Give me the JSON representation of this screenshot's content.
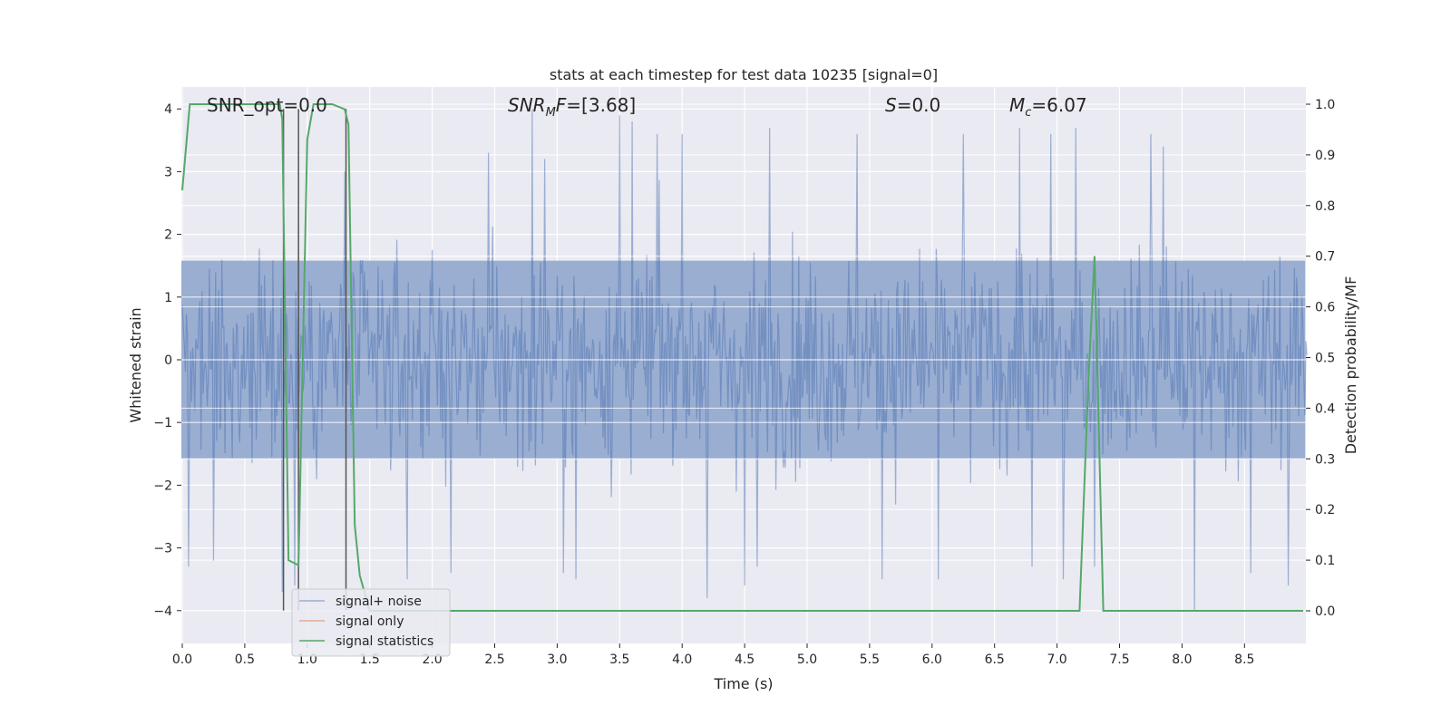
{
  "chart_data": {
    "type": "line",
    "title": "stats at each timestep for test data 10235 [signal=0]",
    "xlabel": "Time (s)",
    "ylabel": "Whitened strain",
    "ylabel_right": "Detection probability/MF",
    "xlim": [
      0.0,
      9.0
    ],
    "ylim": [
      -4.4,
      4.4
    ],
    "ylim_right": [
      -0.05,
      1.05
    ],
    "x_ticks": [
      "0.0",
      "0.5",
      "1.0",
      "1.5",
      "2.0",
      "2.5",
      "3.0",
      "3.5",
      "4.0",
      "4.5",
      "5.0",
      "5.5",
      "6.0",
      "6.5",
      "7.0",
      "7.5",
      "8.0",
      "8.5"
    ],
    "x_tick_values": [
      0.0,
      0.5,
      1.0,
      1.5,
      2.0,
      2.5,
      3.0,
      3.5,
      4.0,
      4.5,
      5.0,
      5.5,
      6.0,
      6.5,
      7.0,
      7.5,
      8.0,
      8.5
    ],
    "y_ticks": [
      "4",
      "3",
      "2",
      "1",
      "0",
      "−1",
      "−2",
      "−3",
      "−4"
    ],
    "y_tick_values": [
      4,
      3,
      2,
      1,
      0,
      -1,
      -2,
      -3,
      -4
    ],
    "y_right_ticks": [
      "1.0",
      "0.9",
      "0.8",
      "0.7",
      "0.6",
      "0.5",
      "0.4",
      "0.3",
      "0.2",
      "0.1",
      "0.0"
    ],
    "y_right_tick_values": [
      1.0,
      0.9,
      0.8,
      0.7,
      0.6,
      0.5,
      0.4,
      0.3,
      0.2,
      0.1,
      0.0
    ],
    "grid": true,
    "legend_position": "bottom-left",
    "annotations": {
      "snr_opt": "SNR_opt=0.0",
      "snr_mf_symbol": "SNR",
      "snr_mf_sub": "M",
      "snr_mf_rest": "F=[3.68]",
      "s_symbol": "S",
      "s_rest": "=0.0",
      "mc_symbol": "M",
      "mc_sub": "c",
      "mc_rest": "=6.07"
    },
    "series": [
      {
        "name": "signal+ noise",
        "color": "#4c72b0",
        "description_kind": "whitened strain noise trace",
        "sample_rate_hz": 120,
        "envelope_std": 1.0,
        "peaks": [
          [
            0.05,
            -3.3
          ],
          [
            0.25,
            -3.2
          ],
          [
            0.8,
            -3.7
          ],
          [
            0.9,
            -3.6
          ],
          [
            1.3,
            3.0
          ],
          [
            1.8,
            -3.5
          ],
          [
            2.15,
            -3.4
          ],
          [
            2.45,
            3.3
          ],
          [
            2.8,
            4.0
          ],
          [
            2.9,
            3.2
          ],
          [
            3.05,
            -3.4
          ],
          [
            3.15,
            -3.5
          ],
          [
            3.5,
            3.9
          ],
          [
            3.6,
            3.8
          ],
          [
            3.8,
            3.6
          ],
          [
            4.0,
            3.6
          ],
          [
            4.2,
            -3.8
          ],
          [
            4.5,
            -3.6
          ],
          [
            4.6,
            -3.3
          ],
          [
            4.7,
            3.7
          ],
          [
            5.4,
            3.6
          ],
          [
            5.6,
            -3.5
          ],
          [
            6.05,
            -3.5
          ],
          [
            6.25,
            3.6
          ],
          [
            6.7,
            3.7
          ],
          [
            6.8,
            -3.3
          ],
          [
            6.95,
            3.6
          ],
          [
            7.05,
            -3.5
          ],
          [
            7.15,
            3.7
          ],
          [
            7.3,
            -3.3
          ],
          [
            7.75,
            3.6
          ],
          [
            7.85,
            3.4
          ],
          [
            8.1,
            -4.0
          ],
          [
            8.55,
            -3.4
          ],
          [
            8.85,
            -3.6
          ]
        ]
      },
      {
        "name": "signal only",
        "color": "#dd8452",
        "x": [],
        "y": []
      },
      {
        "name": "signal statistics",
        "color": "#55a868",
        "axis": "right",
        "x": [
          0.0,
          0.06,
          0.1,
          0.2,
          0.3,
          0.4,
          0.5,
          0.6,
          0.7,
          0.78,
          0.8,
          0.85,
          0.93,
          1.0,
          1.05,
          1.1,
          1.2,
          1.3,
          1.33,
          1.38,
          1.42,
          1.5,
          2.0,
          3.0,
          4.0,
          5.0,
          6.0,
          7.0,
          7.18,
          7.25,
          7.3,
          7.37,
          7.5,
          8.0,
          8.5,
          8.97
        ],
        "y": [
          0.83,
          1.0,
          1.0,
          1.0,
          1.0,
          1.0,
          1.0,
          1.0,
          1.0,
          1.0,
          0.97,
          0.1,
          0.09,
          0.93,
          1.0,
          1.0,
          1.0,
          0.99,
          0.96,
          0.17,
          0.07,
          0.0,
          0.0,
          0.0,
          0.0,
          0.0,
          0.0,
          0.0,
          0.0,
          0.45,
          0.7,
          0.0,
          0.0,
          0.0,
          0.0,
          0.0
        ]
      }
    ],
    "vertical_lines": [
      0.81,
      0.93,
      1.31
    ]
  }
}
